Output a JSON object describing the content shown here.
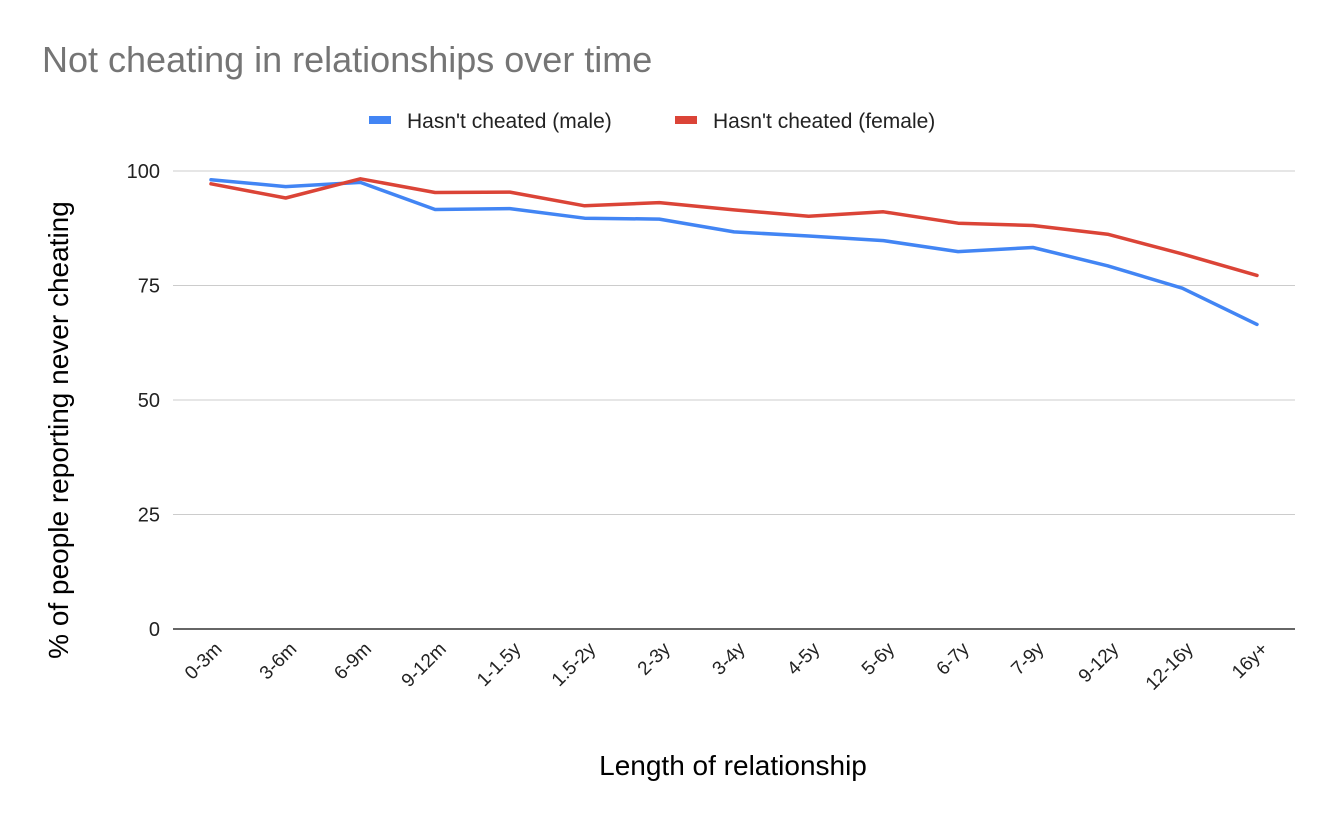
{
  "chart_data": {
    "type": "line",
    "title": "Not cheating in relationships over time",
    "xlabel": "Length of relationship",
    "ylabel": "% of people reporting never cheating",
    "ylim": [
      0,
      100
    ],
    "yticks": [
      0,
      25,
      50,
      75,
      100
    ],
    "grid": true,
    "legend_position": "top",
    "categories": [
      "0-3m",
      "3-6m",
      "6-9m",
      "9-12m",
      "1-1.5y",
      "1.5-2y",
      "2-3y",
      "3-4y",
      "4-5y",
      "5-6y",
      "6-7y",
      "7-9y",
      "9-12y",
      "12-16y",
      "16y+"
    ],
    "series": [
      {
        "name": "Hasn't cheated (male)",
        "color": "#4285f4",
        "values": [
          98.1,
          96.6,
          97.5,
          91.6,
          91.8,
          89.7,
          89.5,
          86.7,
          85.8,
          84.8,
          82.4,
          83.3,
          79.3,
          74.4,
          66.5
        ]
      },
      {
        "name": "Hasn't cheated (female)",
        "color": "#db4437",
        "values": [
          97.2,
          94.1,
          98.3,
          95.3,
          95.4,
          92.4,
          93.1,
          91.5,
          90.1,
          91.1,
          88.6,
          88.1,
          86.2,
          81.9,
          77.2
        ]
      }
    ]
  }
}
